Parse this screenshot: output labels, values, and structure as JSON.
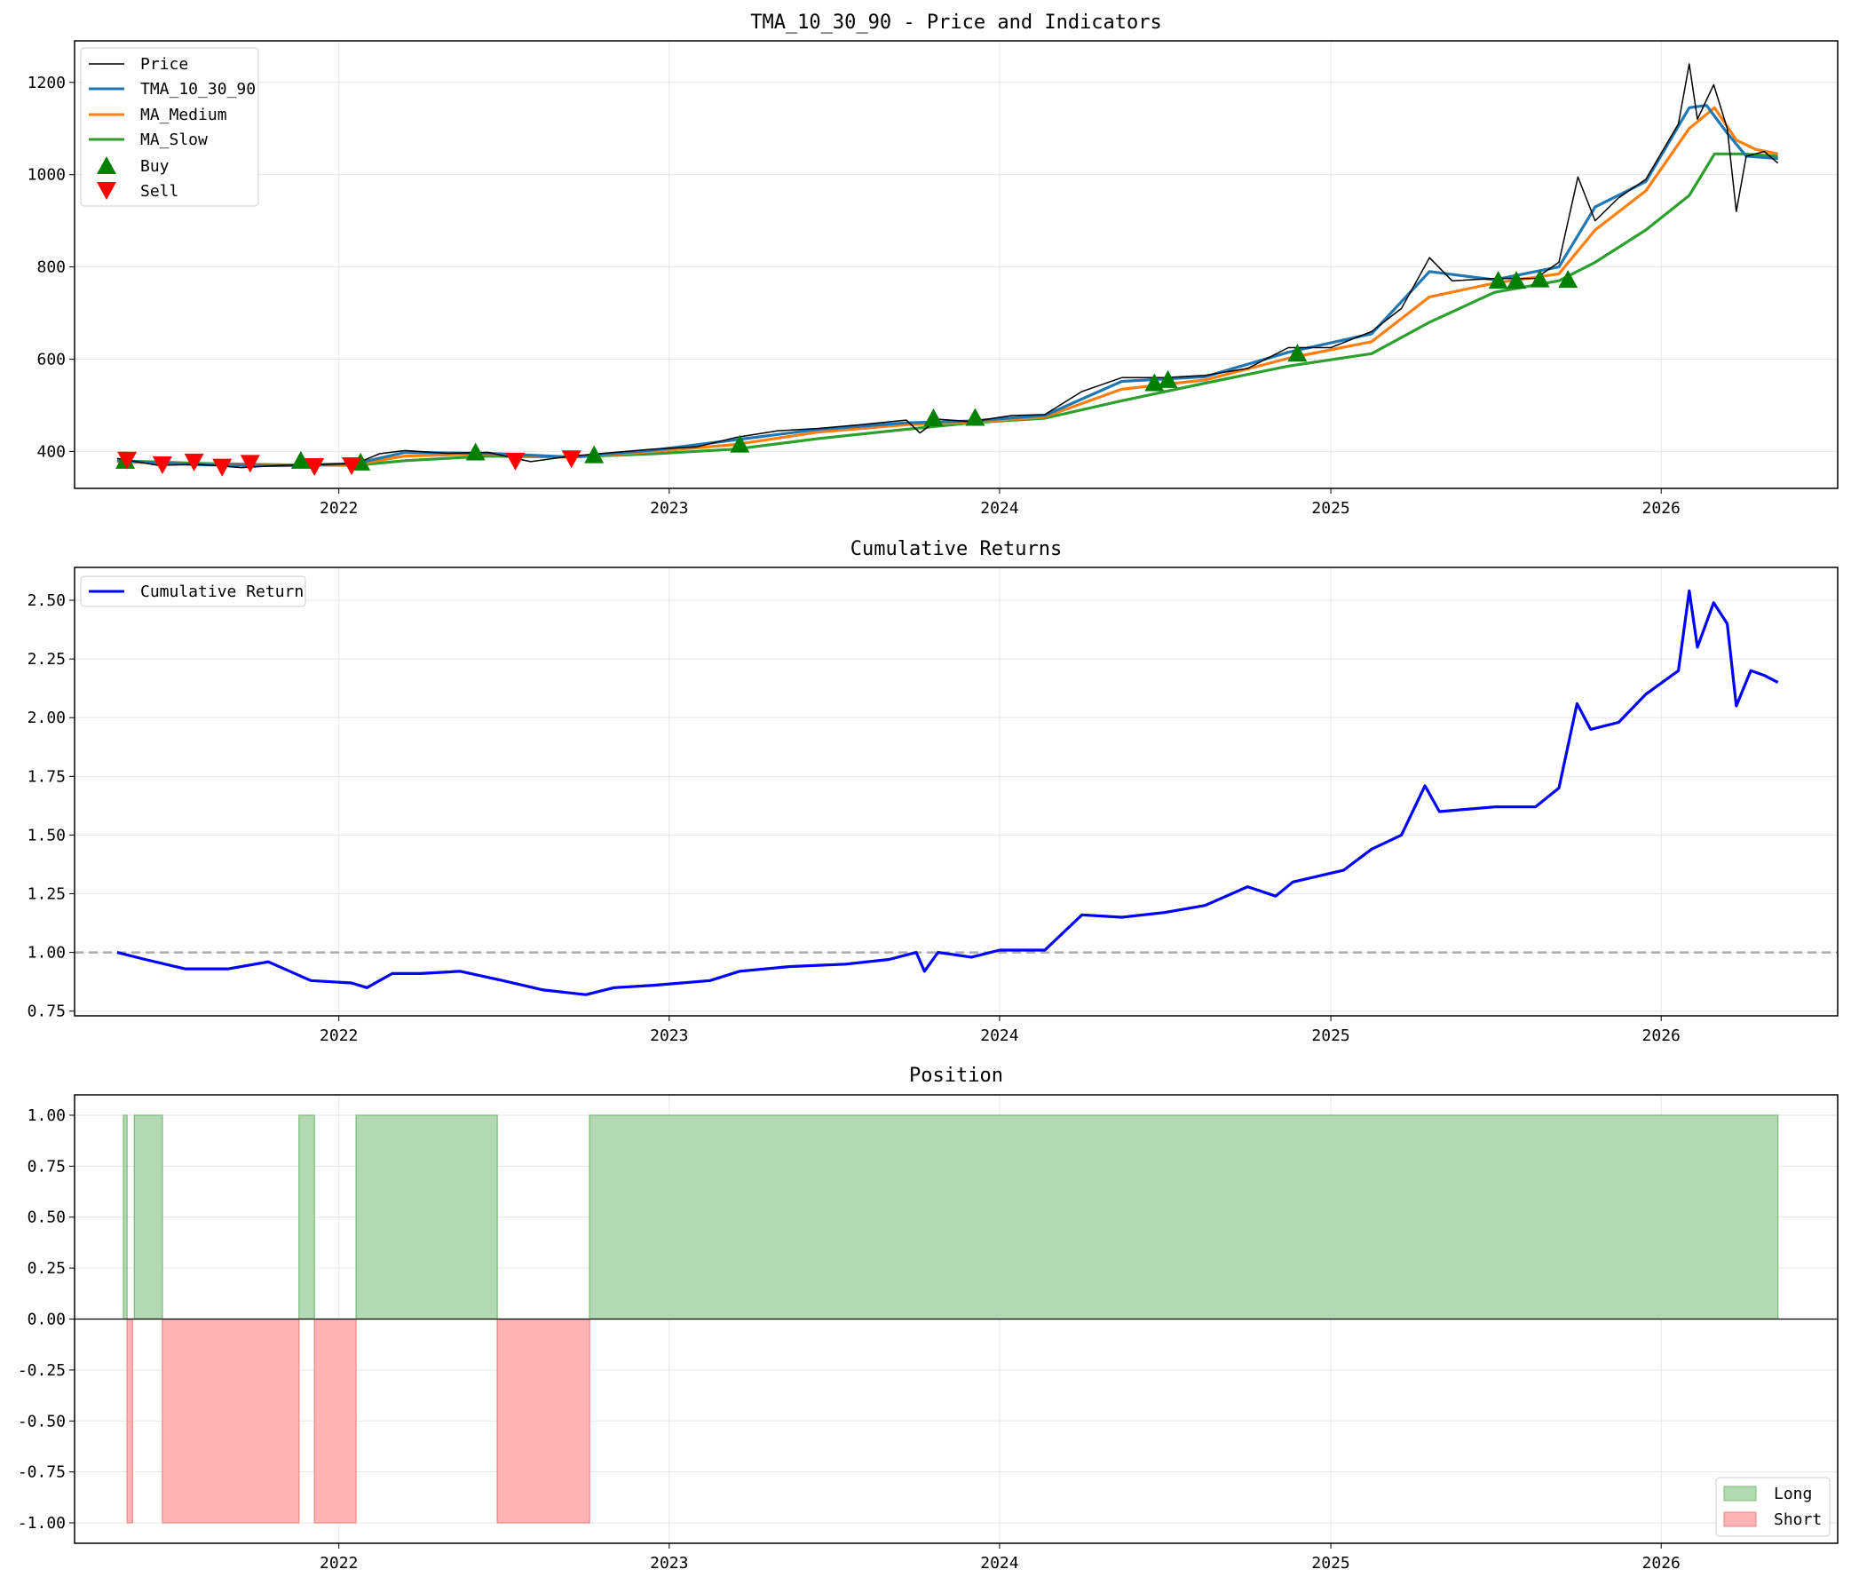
{
  "figure": {
    "x_axis_ticks": [
      "2022",
      "2023",
      "2024",
      "2025",
      "2026"
    ]
  },
  "chart_data": [
    {
      "type": "line",
      "title": "TMA_10_30_90 - Price and Indicators",
      "xlabel": "",
      "ylabel": "",
      "x_range": [
        "2021-03-15",
        "2026-07-15"
      ],
      "ylim": [
        320,
        1290
      ],
      "y_ticks": [
        "400",
        "600",
        "800",
        "1000",
        "1200"
      ],
      "grid": true,
      "legend_position": "upper left",
      "legend": [
        "Price",
        "TMA_10_30_90",
        "MA_Medium",
        "MA_Slow",
        "Buy",
        "Sell"
      ],
      "colors": {
        "Price": "#000000",
        "TMA_10_30_90": "#1f77b4",
        "MA_Medium": "#ff7f0e",
        "MA_Slow": "#2ca02c",
        "Buy": "#008000",
        "Sell": "#ff0000"
      },
      "series": [
        {
          "name": "Price",
          "points": [
            [
              "2021-05-01",
              385
            ],
            [
              "2021-06-15",
              370
            ],
            [
              "2021-08-01",
              372
            ],
            [
              "2021-09-15",
              365
            ],
            [
              "2021-11-01",
              370
            ],
            [
              "2021-12-15",
              372
            ],
            [
              "2022-01-20",
              374
            ],
            [
              "2022-02-15",
              395
            ],
            [
              "2022-03-15",
              402
            ],
            [
              "2022-05-01",
              396
            ],
            [
              "2022-06-15",
              398
            ],
            [
              "2022-08-01",
              378
            ],
            [
              "2022-09-15",
              390
            ],
            [
              "2022-11-01",
              398
            ],
            [
              "2022-12-15",
              405
            ],
            [
              "2023-02-01",
              410
            ],
            [
              "2023-03-15",
              430
            ],
            [
              "2023-05-01",
              445
            ],
            [
              "2023-06-15",
              450
            ],
            [
              "2023-08-01",
              458
            ],
            [
              "2023-09-20",
              468
            ],
            [
              "2023-10-05",
              440
            ],
            [
              "2023-10-25",
              470
            ],
            [
              "2023-12-01",
              465
            ],
            [
              "2024-01-15",
              478
            ],
            [
              "2024-02-20",
              480
            ],
            [
              "2024-04-01",
              530
            ],
            [
              "2024-05-15",
              560
            ],
            [
              "2024-07-01",
              560
            ],
            [
              "2024-08-15",
              565
            ],
            [
              "2024-10-01",
              580
            ],
            [
              "2024-11-15",
              625
            ],
            [
              "2025-01-01",
              625
            ],
            [
              "2025-02-15",
              660
            ],
            [
              "2025-03-20",
              710
            ],
            [
              "2025-04-20",
              820
            ],
            [
              "2025-05-15",
              770
            ],
            [
              "2025-07-01",
              775
            ],
            [
              "2025-08-15",
              775
            ],
            [
              "2025-09-10",
              810
            ],
            [
              "2025-10-01",
              995
            ],
            [
              "2025-10-20",
              900
            ],
            [
              "2025-11-15",
              950
            ],
            [
              "2025-12-15",
              990
            ],
            [
              "2026-01-20",
              1110
            ],
            [
              "2026-02-01",
              1240
            ],
            [
              "2026-02-10",
              1120
            ],
            [
              "2026-02-28",
              1195
            ],
            [
              "2026-03-15",
              1100
            ],
            [
              "2026-03-25",
              920
            ],
            [
              "2026-04-05",
              1040
            ],
            [
              "2026-04-25",
              1050
            ],
            [
              "2026-05-10",
              1025
            ]
          ]
        },
        {
          "name": "TMA_10_30_90",
          "points": [
            [
              "2021-05-01",
              380
            ],
            [
              "2021-08-01",
              371
            ],
            [
              "2021-11-01",
              369
            ],
            [
              "2022-01-20",
              374
            ],
            [
              "2022-03-15",
              398
            ],
            [
              "2022-06-15",
              396
            ],
            [
              "2022-09-15",
              388
            ],
            [
              "2022-12-15",
              403
            ],
            [
              "2023-03-15",
              425
            ],
            [
              "2023-06-15",
              448
            ],
            [
              "2023-09-20",
              462
            ],
            [
              "2023-12-01",
              466
            ],
            [
              "2024-02-20",
              478
            ],
            [
              "2024-05-15",
              552
            ],
            [
              "2024-08-15",
              562
            ],
            [
              "2024-11-15",
              615
            ],
            [
              "2025-02-15",
              655
            ],
            [
              "2025-04-20",
              790
            ],
            [
              "2025-07-01",
              772
            ],
            [
              "2025-09-10",
              800
            ],
            [
              "2025-10-20",
              930
            ],
            [
              "2025-12-15",
              985
            ],
            [
              "2026-02-01",
              1145
            ],
            [
              "2026-02-20",
              1150
            ],
            [
              "2026-03-15",
              1090
            ],
            [
              "2026-04-05",
              1040
            ],
            [
              "2026-05-10",
              1035
            ]
          ]
        },
        {
          "name": "MA_Medium",
          "points": [
            [
              "2021-05-01",
              378
            ],
            [
              "2021-08-01",
              372
            ],
            [
              "2021-11-01",
              370
            ],
            [
              "2022-01-20",
              372
            ],
            [
              "2022-03-15",
              390
            ],
            [
              "2022-06-15",
              395
            ],
            [
              "2022-09-15",
              387
            ],
            [
              "2022-12-15",
              400
            ],
            [
              "2023-03-15",
              415
            ],
            [
              "2023-06-15",
              442
            ],
            [
              "2023-09-20",
              458
            ],
            [
              "2023-12-01",
              463
            ],
            [
              "2024-02-20",
              475
            ],
            [
              "2024-05-15",
              535
            ],
            [
              "2024-08-15",
              555
            ],
            [
              "2024-11-15",
              602
            ],
            [
              "2025-02-15",
              638
            ],
            [
              "2025-04-20",
              735
            ],
            [
              "2025-07-01",
              765
            ],
            [
              "2025-09-10",
              785
            ],
            [
              "2025-10-20",
              880
            ],
            [
              "2025-12-15",
              965
            ],
            [
              "2026-02-01",
              1100
            ],
            [
              "2026-03-01",
              1145
            ],
            [
              "2026-03-25",
              1075
            ],
            [
              "2026-04-15",
              1055
            ],
            [
              "2026-05-10",
              1045
            ]
          ]
        },
        {
          "name": "MA_Slow",
          "points": [
            [
              "2021-05-01",
              380
            ],
            [
              "2021-08-01",
              374
            ],
            [
              "2021-11-01",
              371
            ],
            [
              "2022-01-20",
              370
            ],
            [
              "2022-03-15",
              380
            ],
            [
              "2022-06-15",
              390
            ],
            [
              "2022-09-15",
              388
            ],
            [
              "2022-12-15",
              395
            ],
            [
              "2023-03-15",
              405
            ],
            [
              "2023-06-15",
              428
            ],
            [
              "2023-09-20",
              448
            ],
            [
              "2023-12-01",
              462
            ],
            [
              "2024-02-20",
              472
            ],
            [
              "2024-05-15",
              510
            ],
            [
              "2024-08-15",
              548
            ],
            [
              "2024-11-15",
              585
            ],
            [
              "2025-02-15",
              612
            ],
            [
              "2025-04-20",
              680
            ],
            [
              "2025-07-01",
              745
            ],
            [
              "2025-09-10",
              770
            ],
            [
              "2025-10-20",
              810
            ],
            [
              "2025-12-15",
              880
            ],
            [
              "2026-02-01",
              955
            ],
            [
              "2026-03-01",
              1045
            ],
            [
              "2026-04-01",
              1045
            ],
            [
              "2026-05-10",
              1040
            ]
          ]
        }
      ],
      "markers": {
        "buy": [
          [
            "2021-05-10",
            380
          ],
          [
            "2021-11-20",
            380
          ],
          [
            "2022-01-25",
            376
          ],
          [
            "2022-06-01",
            398
          ],
          [
            "2022-10-10",
            392
          ],
          [
            "2023-03-20",
            415
          ],
          [
            "2023-10-20",
            472
          ],
          [
            "2023-12-05",
            473
          ],
          [
            "2024-06-20",
            548
          ],
          [
            "2024-07-05",
            555
          ],
          [
            "2024-11-25",
            612
          ],
          [
            "2025-07-05",
            770
          ],
          [
            "2025-07-25",
            770
          ],
          [
            "2025-08-20",
            773
          ],
          [
            "2025-09-20",
            772
          ]
        ],
        "sell": [
          [
            "2021-05-12",
            382
          ],
          [
            "2021-06-20",
            372
          ],
          [
            "2021-07-25",
            378
          ],
          [
            "2021-08-25",
            367
          ],
          [
            "2021-09-25",
            375
          ],
          [
            "2021-12-05",
            368
          ],
          [
            "2022-01-15",
            370
          ],
          [
            "2022-07-15",
            380
          ],
          [
            "2022-09-15",
            385
          ]
        ]
      }
    },
    {
      "type": "line",
      "title": "Cumulative Returns",
      "xlabel": "",
      "ylabel": "",
      "x_range": [
        "2021-03-15",
        "2026-07-15"
      ],
      "ylim": [
        0.73,
        2.64
      ],
      "y_ticks": [
        "0.75",
        "1.00",
        "1.25",
        "1.50",
        "1.75",
        "2.00",
        "2.25",
        "2.50"
      ],
      "reference_line": 1.0,
      "grid": true,
      "legend_position": "upper left",
      "legend": [
        "Cumulative Return"
      ],
      "colors": {
        "Cumulative Return": "#0000ff",
        "reference": "#aaaaaa"
      },
      "series": [
        {
          "name": "Cumulative Return",
          "points": [
            [
              "2021-05-01",
              1.0
            ],
            [
              "2021-06-01",
              0.97
            ],
            [
              "2021-07-15",
              0.93
            ],
            [
              "2021-09-01",
              0.93
            ],
            [
              "2021-10-15",
              0.96
            ],
            [
              "2021-12-01",
              0.88
            ],
            [
              "2022-01-15",
              0.87
            ],
            [
              "2022-02-01",
              0.85
            ],
            [
              "2022-03-01",
              0.91
            ],
            [
              "2022-04-01",
              0.91
            ],
            [
              "2022-05-15",
              0.92
            ],
            [
              "2022-07-01",
              0.88
            ],
            [
              "2022-08-15",
              0.84
            ],
            [
              "2022-10-01",
              0.82
            ],
            [
              "2022-11-01",
              0.85
            ],
            [
              "2022-12-15",
              0.86
            ],
            [
              "2023-02-15",
              0.88
            ],
            [
              "2023-03-20",
              0.92
            ],
            [
              "2023-05-15",
              0.94
            ],
            [
              "2023-07-15",
              0.95
            ],
            [
              "2023-09-01",
              0.97
            ],
            [
              "2023-10-01",
              1.0
            ],
            [
              "2023-10-10",
              0.92
            ],
            [
              "2023-10-25",
              1.0
            ],
            [
              "2023-12-01",
              0.98
            ],
            [
              "2024-01-01",
              1.01
            ],
            [
              "2024-02-20",
              1.01
            ],
            [
              "2024-04-01",
              1.16
            ],
            [
              "2024-05-15",
              1.15
            ],
            [
              "2024-07-01",
              1.17
            ],
            [
              "2024-08-15",
              1.2
            ],
            [
              "2024-10-01",
              1.28
            ],
            [
              "2024-11-01",
              1.24
            ],
            [
              "2024-11-20",
              1.3
            ],
            [
              "2025-01-15",
              1.35
            ],
            [
              "2025-02-15",
              1.44
            ],
            [
              "2025-03-20",
              1.5
            ],
            [
              "2025-04-15",
              1.71
            ],
            [
              "2025-05-01",
              1.6
            ],
            [
              "2025-07-01",
              1.62
            ],
            [
              "2025-08-15",
              1.62
            ],
            [
              "2025-09-10",
              1.7
            ],
            [
              "2025-09-30",
              2.06
            ],
            [
              "2025-10-15",
              1.95
            ],
            [
              "2025-11-15",
              1.98
            ],
            [
              "2025-12-15",
              2.1
            ],
            [
              "2026-01-20",
              2.2
            ],
            [
              "2026-02-01",
              2.54
            ],
            [
              "2026-02-10",
              2.3
            ],
            [
              "2026-02-28",
              2.49
            ],
            [
              "2026-03-15",
              2.4
            ],
            [
              "2026-03-25",
              2.05
            ],
            [
              "2026-04-10",
              2.2
            ],
            [
              "2026-04-25",
              2.18
            ],
            [
              "2026-05-10",
              2.15
            ]
          ]
        }
      ]
    },
    {
      "type": "area",
      "title": "Position",
      "xlabel": "",
      "ylabel": "",
      "x_range": [
        "2021-03-15",
        "2026-07-15"
      ],
      "ylim": [
        -1.1,
        1.1
      ],
      "y_ticks": [
        "-1.00",
        "-0.75",
        "-0.50",
        "-0.25",
        "0.00",
        "0.25",
        "0.50",
        "0.75",
        "1.00"
      ],
      "grid": true,
      "legend_position": "lower right",
      "legend": [
        "Long",
        "Short"
      ],
      "colors": {
        "Long": "#b3d9b3",
        "Long_edge": "#77bb77",
        "Short": "#ffb3b3",
        "Short_edge": "#ee8888"
      },
      "long_periods": [
        [
          "2021-05-08",
          "2021-05-12"
        ],
        [
          "2021-05-20",
          "2021-06-20"
        ],
        [
          "2021-11-18",
          "2021-12-05"
        ],
        [
          "2022-01-20",
          "2022-06-25"
        ],
        [
          "2022-10-05",
          "2026-05-10"
        ]
      ],
      "short_periods": [
        [
          "2021-05-12",
          "2021-05-18"
        ],
        [
          "2021-06-20",
          "2021-11-18"
        ],
        [
          "2021-12-05",
          "2022-01-20"
        ],
        [
          "2022-06-25",
          "2022-10-05"
        ]
      ]
    }
  ]
}
